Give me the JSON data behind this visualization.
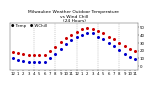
{
  "title": "Milwaukee Weather Outdoor Temperature\nvs Wind Chill\n(24 Hours)",
  "title_fontsize": 3.2,
  "background_color": "#ffffff",
  "temp_color": "#cc0000",
  "windchill_color": "#0000cc",
  "black_color": "#000000",
  "grid_color": "#999999",
  "hours": [
    0,
    1,
    2,
    3,
    4,
    5,
    6,
    7,
    8,
    9,
    10,
    11,
    12,
    13,
    14,
    15,
    16,
    17,
    18,
    19,
    20,
    21,
    22,
    23
  ],
  "temp": [
    18,
    17,
    16,
    15,
    14,
    14,
    15,
    20,
    25,
    31,
    36,
    40,
    44,
    47,
    49,
    48,
    45,
    42,
    38,
    35,
    30,
    26,
    22,
    19
  ],
  "windchill": [
    10,
    8,
    7,
    6,
    5,
    5,
    6,
    11,
    16,
    22,
    28,
    33,
    37,
    40,
    43,
    42,
    38,
    35,
    30,
    26,
    21,
    16,
    12,
    9
  ],
  "ylim_min": -5,
  "ylim_max": 55,
  "yticks": [
    0,
    10,
    20,
    30,
    40,
    50
  ],
  "ytick_labels": [
    "0",
    "10",
    "20",
    "30",
    "40",
    "50"
  ],
  "xtick_labels": [
    "12",
    "1",
    "2",
    "3",
    "4",
    "5",
    "6",
    "7",
    "8",
    "9",
    "10",
    "11",
    "12",
    "1",
    "2",
    "3",
    "4",
    "5",
    "6",
    "7",
    "8",
    "9",
    "10",
    "11"
  ],
  "marker_size": 1.2,
  "tick_fontsize": 2.8,
  "legend_fontsize": 2.8,
  "grid_hours": [
    4,
    8,
    12,
    16,
    20
  ]
}
